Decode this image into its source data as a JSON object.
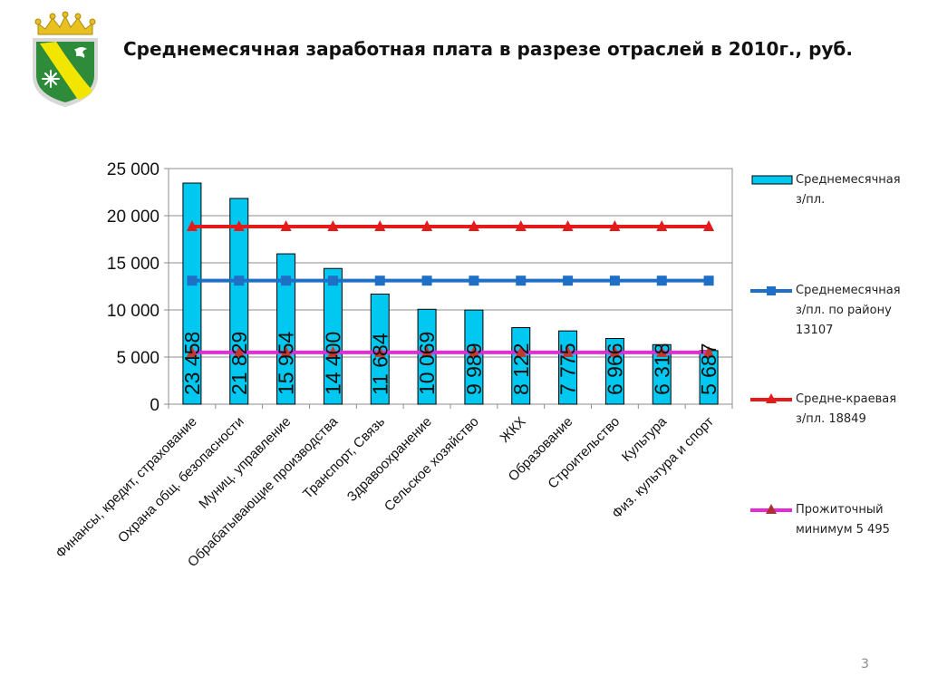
{
  "slide": {
    "title": "Среднемесячная заработная плата в разрезе отраслей в 2010г., руб.",
    "page_number": "3"
  },
  "chart_data": {
    "type": "bar",
    "categories": [
      "Финансы, кредит, страхование",
      "Охрана общ. безопасности",
      "Муниц. управление",
      "Обрабатывающие производства",
      "Транспорт, Связь",
      "Здравоохранение",
      "Сельское хозяйство",
      "ЖКХ",
      "Образование",
      "Строительство",
      "Культура",
      "Физ. культура и спорт"
    ],
    "series": [
      {
        "name": "Среднемесячная з/пл.",
        "type": "bar",
        "color": "#00c8f0",
        "values": [
          23458,
          21829,
          15954,
          14400,
          11684,
          10069,
          9989,
          8122,
          7775,
          6966,
          6318,
          5687
        ],
        "labels": [
          "23 458",
          "21 829",
          "15 954",
          "14 400",
          "11 684",
          "10 069",
          "9 989",
          "8 122",
          "7 775",
          "6 966",
          "6 318",
          "5 687"
        ]
      },
      {
        "name": "Среднемесячная з/пл. по району 13107",
        "type": "line",
        "marker": "square",
        "color": "#1f6fc6",
        "values": [
          13107,
          13107,
          13107,
          13107,
          13107,
          13107,
          13107,
          13107,
          13107,
          13107,
          13107,
          13107
        ]
      },
      {
        "name": "Средне-краевая з/пл. 18849",
        "type": "line",
        "marker": "triangle",
        "color": "#e31b1b",
        "values": [
          18849,
          18849,
          18849,
          18849,
          18849,
          18849,
          18849,
          18849,
          18849,
          18849,
          18849,
          18849
        ]
      },
      {
        "name": "Прожиточный минимум 5 495",
        "type": "line",
        "marker": "triangle",
        "color": "#e62ad8",
        "values": [
          5495,
          5495,
          5495,
          5495,
          5495,
          5495,
          5495,
          5495,
          5495,
          5495,
          5495,
          5495
        ]
      }
    ],
    "ylim": [
      0,
      25000
    ],
    "yticks": [
      0,
      5000,
      10000,
      15000,
      20000,
      25000
    ],
    "ytick_labels": [
      "0",
      "5 000",
      "10 000",
      "15 000",
      "20 000",
      "25 000"
    ],
    "grid": true,
    "legend_position": "right"
  },
  "legend": {
    "items": [
      {
        "line1": "Среднемесячная",
        "line2": "з/пл."
      },
      {
        "line1": "Среднемесячная",
        "line2": "з/пл. по району",
        "line3": "13107"
      },
      {
        "line1": "Средне-краевая",
        "line2": "з/пл. 18849"
      },
      {
        "line1": "Прожиточный",
        "line2": "минимум 5 495"
      }
    ]
  },
  "emblem": {
    "icon": "coat-of-arms-icon",
    "colors": {
      "field": "#2e8b3a",
      "band": "#f2e600",
      "crown": "#e8c020",
      "border": "#d8d8d8"
    }
  }
}
